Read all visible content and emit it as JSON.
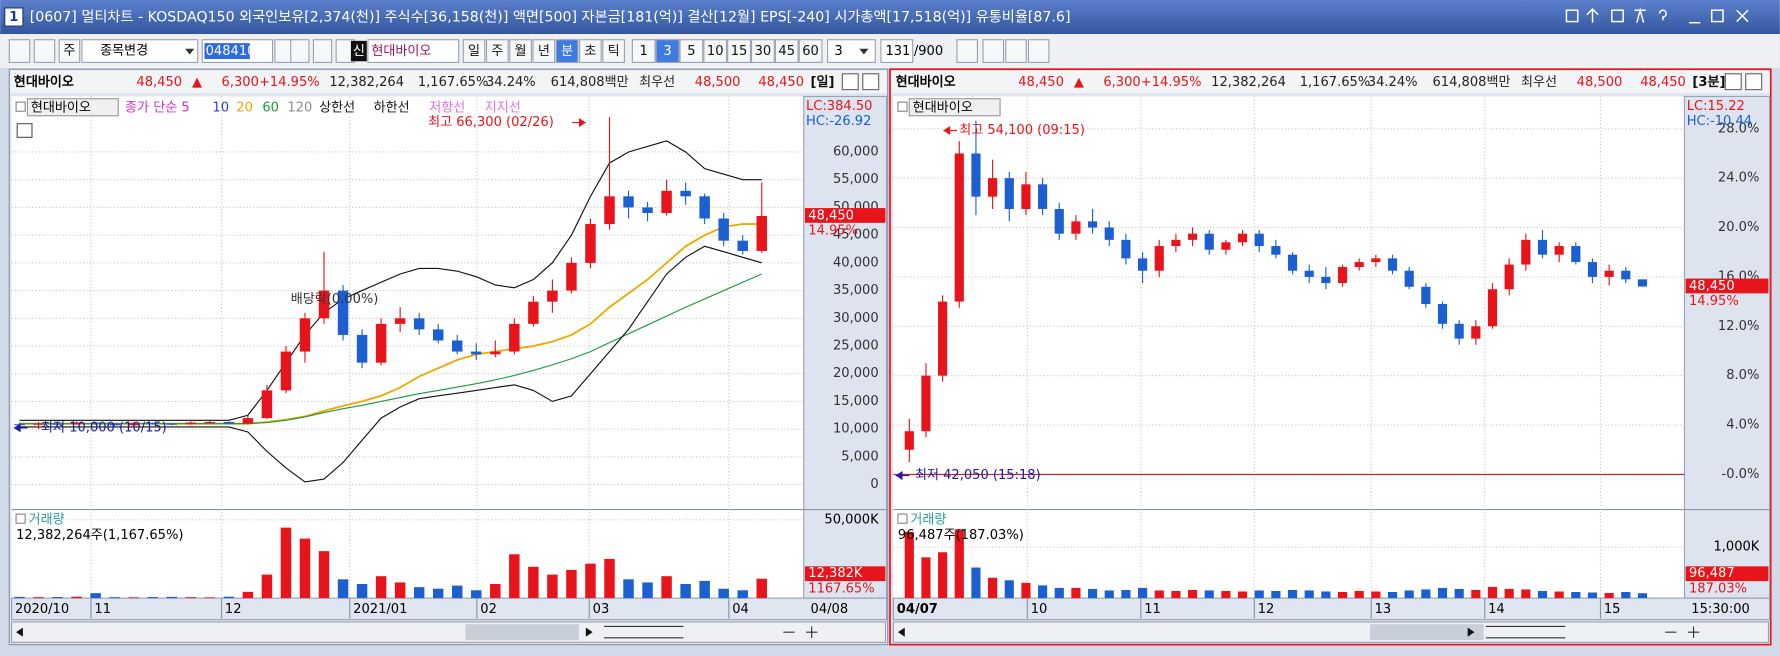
{
  "window": {
    "number": "1",
    "title": "[0607] 멀티차트 - KOSDAQ150 외국인보유[2,374(천)] 주식수[36,158(천)] 액면[500] 자본금[181(억)] 결산[12월] EPS[-240] 시가총액[17,518(억)] 유통비율[87.6]"
  },
  "toolbar": {
    "market": "주",
    "change_item": "종목변경",
    "code": "048410",
    "new_badge": "신",
    "name": "현대바이오",
    "periods": [
      "일",
      "주",
      "월",
      "년",
      "분",
      "초",
      "틱"
    ],
    "minutes": [
      "1",
      "3",
      "5",
      "10",
      "15",
      "30",
      "45",
      "60"
    ],
    "interval": "3",
    "count": "131",
    "max": "/900"
  },
  "chart_data": [
    {
      "type": "candlestick",
      "name": "현대바이오",
      "header": [
        "48,450",
        "▲",
        "6,300",
        "+14.95%",
        "12,382,264",
        "1,167.65%",
        "34.24%",
        "614,808백만",
        "최우선",
        "48,500",
        "48,450",
        "[일]"
      ],
      "up_color": "#e8141b",
      "down_color": "#1c5fd1",
      "ylim": [
        -4300,
        69400
      ],
      "yticks": [
        0,
        {
          "value": 5000,
          "label": "5,000"
        },
        {
          "value": 10000,
          "label": "10,000"
        },
        {
          "value": 15000,
          "label": "15,000"
        },
        {
          "value": 20000,
          "label": "20,000"
        },
        {
          "value": 25000,
          "label": "25,000"
        },
        {
          "value": 30000,
          "label": "30,000"
        },
        {
          "value": 35000,
          "label": "35,000"
        },
        {
          "value": 40000,
          "label": "40,000"
        },
        {
          "value": 45000,
          "label": "45,000"
        },
        {
          "value": 50000,
          "label": "50,000"
        },
        {
          "value": 55000,
          "label": "55,000"
        },
        {
          "value": 60000,
          "label": "60,000"
        }
      ],
      "lc": "LC:384.50",
      "hc": "HC:-26.92",
      "price_label": "48,450",
      "change_label": "14.95%",
      "xlabels": [
        "2020/10",
        "11",
        "12",
        "2021/01",
        "02",
        "03",
        "04"
      ],
      "x_end_label": "04/08",
      "annotations": [
        {
          "text": "최고 66,300 (02/26)",
          "color": "#e8141b"
        },
        {
          "text": "최저 10,000 (10/15)",
          "color": "#1a1aa8"
        },
        {
          "text": "배당락(0.00%)",
          "color": "#333333"
        }
      ],
      "candles": [
        [
          10900,
          11200,
          10600,
          10800
        ],
        [
          10800,
          11300,
          10000,
          11000
        ],
        [
          11000,
          11200,
          10700,
          10900
        ],
        [
          10900,
          11400,
          10800,
          11200
        ],
        [
          11200,
          11300,
          10800,
          11000
        ],
        [
          11000,
          11100,
          10400,
          10700
        ],
        [
          10700,
          11300,
          10600,
          11100
        ],
        [
          11100,
          11200,
          10800,
          11000
        ],
        [
          11000,
          11100,
          10700,
          10900
        ],
        [
          10900,
          11400,
          10800,
          11200
        ],
        [
          11200,
          11500,
          11000,
          11300
        ],
        [
          11300,
          11400,
          10900,
          11000
        ],
        [
          11000,
          12500,
          10900,
          12000
        ],
        [
          12000,
          18000,
          11800,
          17000
        ],
        [
          17000,
          25000,
          16500,
          24000
        ],
        [
          24000,
          31000,
          22000,
          30000
        ],
        [
          30000,
          42000,
          29000,
          35000
        ],
        [
          35000,
          36000,
          26000,
          27000
        ],
        [
          27000,
          28000,
          21000,
          22000
        ],
        [
          22000,
          30000,
          21500,
          29000
        ],
        [
          29000,
          32000,
          27500,
          30000
        ],
        [
          30000,
          31000,
          27000,
          28000
        ],
        [
          28000,
          29000,
          25500,
          26000
        ],
        [
          26000,
          27000,
          23500,
          24000
        ],
        [
          24000,
          25500,
          22500,
          23500
        ],
        [
          23500,
          26000,
          23000,
          24000
        ],
        [
          24000,
          30000,
          23500,
          29000
        ],
        [
          29000,
          34000,
          28500,
          33000
        ],
        [
          33000,
          37000,
          31000,
          35000
        ],
        [
          35000,
          41000,
          34500,
          40000
        ],
        [
          40000,
          48000,
          39000,
          47000
        ],
        [
          47000,
          66300,
          46000,
          52000
        ],
        [
          52000,
          53000,
          48000,
          50000
        ],
        [
          50000,
          51000,
          47500,
          49000
        ],
        [
          49000,
          55000,
          48500,
          53000
        ],
        [
          53000,
          54500,
          50500,
          52000
        ],
        [
          52000,
          52500,
          47000,
          48000
        ],
        [
          48000,
          49000,
          43000,
          44000
        ],
        [
          44000,
          45000,
          41500,
          42150
        ],
        [
          42150,
          54500,
          41800,
          48450
        ]
      ],
      "series": [
        {
          "name": "종가 단순 5",
          "color": "#d62fd0"
        },
        {
          "name": "10",
          "color": "#2f3fd6"
        },
        {
          "name": "20",
          "color": "#f0a800",
          "values": [
            11000,
            11000,
            11000,
            11000,
            11000,
            11000,
            11000,
            11000,
            11000,
            11000,
            11000,
            11000,
            11000,
            11300,
            11700,
            12300,
            13300,
            14200,
            15000,
            16000,
            17500,
            19500,
            21000,
            22500,
            23500,
            24000,
            24500,
            25000,
            25800,
            27000,
            29000,
            32000,
            34500,
            37000,
            40000,
            43000,
            45000,
            46500,
            47000,
            47000
          ]
        },
        {
          "name": "60",
          "color": "#1e9a3c",
          "values": [
            11000,
            11000,
            11000,
            11000,
            11000,
            11000,
            11000,
            11000,
            11000,
            11000,
            11000,
            11000,
            11000,
            11200,
            11600,
            12200,
            13000,
            13700,
            14300,
            15000,
            15700,
            16400,
            17000,
            17600,
            18200,
            18900,
            19700,
            20600,
            21600,
            22700,
            24000,
            25600,
            27200,
            28800,
            30400,
            32000,
            33500,
            35000,
            36500,
            38000
          ]
        },
        {
          "name": "120",
          "color": "#8c8c8c"
        },
        {
          "name": "상한선",
          "color": "#111111",
          "values": [
            11600,
            11600,
            11600,
            11600,
            11600,
            11600,
            11600,
            11600,
            11600,
            11600,
            11600,
            11600,
            12500,
            17000,
            22000,
            27000,
            31000,
            33500,
            35000,
            36500,
            38000,
            39000,
            39000,
            38500,
            37500,
            36000,
            35500,
            37000,
            40000,
            45000,
            52000,
            58000,
            60000,
            61000,
            62000,
            60000,
            57000,
            56000,
            55000,
            55000
          ]
        },
        {
          "name": "하한선",
          "color": "#111111",
          "values": [
            10400,
            10400,
            10400,
            10400,
            10400,
            10400,
            10400,
            10400,
            10400,
            10400,
            10400,
            10400,
            9500,
            6000,
            3000,
            500,
            1000,
            4000,
            8000,
            12000,
            14000,
            15500,
            16000,
            16500,
            17000,
            17500,
            18000,
            17000,
            15000,
            16000,
            20000,
            24000,
            28000,
            33000,
            38000,
            41000,
            43000,
            42000,
            41000,
            40000
          ]
        },
        {
          "name": "저항선",
          "color": "#e070e0"
        },
        {
          "name": "지지선",
          "color": "#e070e0"
        }
      ],
      "volume": {
        "title": "거래량",
        "summary": "12,382,264주(1,167.65%)",
        "ylim": [
          0,
          54350
        ],
        "yticks": [
          {
            "value": 50000,
            "label": "50,000K"
          }
        ],
        "current_label": "12,382K",
        "current_ratio": "1167.65%",
        "values": [
          800,
          600,
          700,
          900,
          3200,
          600,
          500,
          700,
          800,
          600,
          500,
          900,
          4000,
          15000,
          45000,
          38000,
          30000,
          12000,
          9000,
          14000,
          10000,
          7000,
          6000,
          8000,
          5000,
          9000,
          28000,
          20000,
          15000,
          18000,
          22000,
          25000,
          12000,
          10000,
          14000,
          9000,
          11000,
          6000,
          5000,
          12382
        ]
      }
    },
    {
      "type": "candlestick",
      "name": "현대바이오",
      "header": [
        "48,450",
        "▲",
        "6,300",
        "+14.95%",
        "12,382,264",
        "1,167.65%",
        "34.24%",
        "614,808백만",
        "최우선",
        "48,500",
        "48,450",
        "[3분]"
      ],
      "up_color": "#e8141b",
      "down_color": "#1c5fd1",
      "ylim": [
        -2.76,
        30.34
      ],
      "yticks": [
        {
          "value": 0,
          "label": "-0.0%"
        },
        {
          "value": 4,
          "label": "4.0%"
        },
        {
          "value": 8,
          "label": "8.0%"
        },
        {
          "value": 12,
          "label": "12.0%"
        },
        {
          "value": 16,
          "label": "16.0%"
        },
        {
          "value": 20,
          "label": "20.0%"
        },
        {
          "value": 24,
          "label": "24.0%"
        },
        {
          "value": 28,
          "label": "28.0%"
        }
      ],
      "lc": "LC:15.22",
      "hc": "HC:-10.44",
      "price_label": "48,450",
      "change_label": "14.95%",
      "xlabels": [
        "04/07",
        "10",
        "11",
        "12",
        "13",
        "14",
        "15"
      ],
      "x_end_label": "15:30:00",
      "annotations": [
        {
          "text": "최고 54,100 (09:15)",
          "color": "#e8141b"
        },
        {
          "text": "최저 42,050 (15:18)",
          "color": "#1a1aa8"
        }
      ],
      "candles": [
        [
          2.0,
          4.5,
          1.0,
          3.5
        ],
        [
          3.5,
          9.0,
          3.0,
          8.0
        ],
        [
          8.0,
          14.5,
          7.5,
          14.0
        ],
        [
          14.0,
          27.0,
          13.5,
          26.0
        ],
        [
          26.0,
          28.66,
          21.0,
          22.5
        ],
        [
          22.5,
          25.5,
          21.5,
          24.0
        ],
        [
          24.0,
          24.5,
          20.5,
          21.5
        ],
        [
          21.5,
          24.5,
          21.0,
          23.5
        ],
        [
          23.5,
          24.0,
          21.0,
          21.5
        ],
        [
          21.5,
          22.0,
          19.0,
          19.5
        ],
        [
          19.5,
          21.0,
          19.0,
          20.5
        ],
        [
          20.5,
          21.5,
          19.5,
          20.0
        ],
        [
          20.0,
          20.5,
          18.5,
          19.0
        ],
        [
          19.0,
          19.5,
          17.0,
          17.5
        ],
        [
          17.5,
          18.0,
          15.5,
          16.5
        ],
        [
          16.5,
          19.0,
          16.0,
          18.5
        ],
        [
          18.5,
          19.5,
          18.0,
          19.0
        ],
        [
          19.0,
          20.0,
          18.5,
          19.5
        ],
        [
          19.5,
          19.8,
          17.8,
          18.2
        ],
        [
          18.2,
          19.0,
          17.8,
          18.8
        ],
        [
          18.8,
          19.8,
          18.5,
          19.5
        ],
        [
          19.5,
          19.8,
          18.0,
          18.5
        ],
        [
          18.5,
          19.0,
          17.5,
          17.8
        ],
        [
          17.8,
          18.0,
          16.2,
          16.5
        ],
        [
          16.5,
          17.0,
          15.5,
          16.0
        ],
        [
          16.0,
          16.8,
          15.0,
          15.5
        ],
        [
          15.5,
          17.0,
          15.2,
          16.8
        ],
        [
          16.8,
          17.5,
          16.5,
          17.2
        ],
        [
          17.2,
          17.8,
          16.8,
          17.5
        ],
        [
          17.5,
          17.8,
          16.2,
          16.5
        ],
        [
          16.5,
          16.8,
          15.0,
          15.2
        ],
        [
          15.2,
          15.5,
          13.5,
          13.8
        ],
        [
          13.8,
          14.0,
          11.8,
          12.2
        ],
        [
          12.2,
          12.5,
          10.5,
          11.0
        ],
        [
          11.0,
          12.5,
          10.5,
          12.0
        ],
        [
          12.0,
          15.5,
          11.8,
          15.0
        ],
        [
          15.0,
          17.5,
          14.5,
          17.0
        ],
        [
          17.0,
          19.5,
          16.5,
          19.0
        ],
        [
          19.0,
          19.8,
          17.5,
          17.8
        ],
        [
          17.8,
          18.8,
          17.2,
          18.5
        ],
        [
          18.5,
          18.8,
          17.0,
          17.2
        ],
        [
          17.2,
          17.5,
          15.5,
          16.0
        ],
        [
          16.0,
          17.0,
          15.3,
          16.5
        ],
        [
          16.5,
          16.8,
          15.5,
          15.8
        ],
        [
          15.8,
          15.8,
          15.2,
          15.22
        ]
      ],
      "volume": {
        "title": "거래량",
        "summary": "96,487주(187.03%)",
        "ylim": [
          0,
          1670
        ],
        "yticks": [
          {
            "value": 1000,
            "label": "1,000K"
          }
        ],
        "current_label": "96,487",
        "current_ratio": "187.03%",
        "values": [
          1300,
          800,
          900,
          1350,
          600,
          400,
          350,
          300,
          250,
          200,
          200,
          180,
          150,
          160,
          200,
          150,
          140,
          160,
          150,
          140,
          130,
          150,
          140,
          160,
          150,
          130,
          120,
          140,
          130,
          120,
          150,
          170,
          200,
          180,
          160,
          220,
          180,
          170,
          140,
          130,
          120,
          110,
          100,
          120,
          96.487
        ]
      }
    }
  ]
}
